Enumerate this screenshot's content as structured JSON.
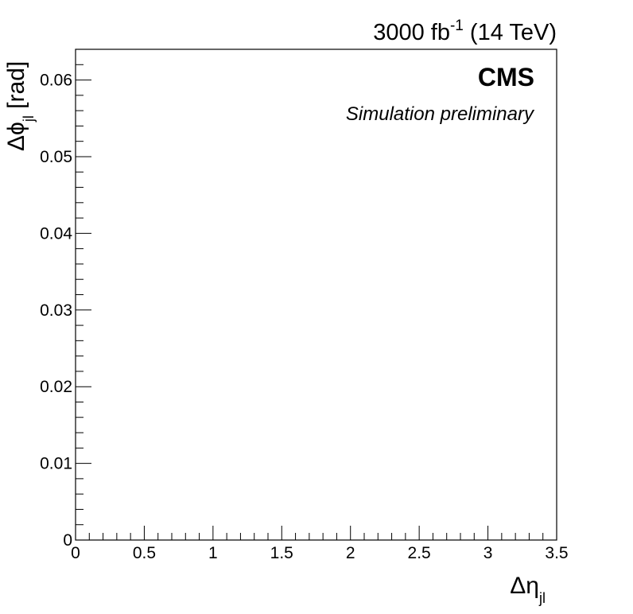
{
  "header": {
    "lumi_main": "3000 fb",
    "lumi_sup": "-1",
    "lumi_energy": " (14 TeV)"
  },
  "labels": {
    "experiment": "CMS",
    "status": "Simulation preliminary"
  },
  "axes": {
    "x_title_main": "Δη",
    "x_title_sub": "jl",
    "y_title_main": "Δϕ",
    "y_title_sub": "jl",
    "y_title_unit": " [rad]"
  },
  "chart_data": {
    "type": "scatter",
    "series": [],
    "xlabel": "Δη_jl",
    "ylabel": "Δϕ_jl [rad]",
    "xlim": [
      0,
      3.5
    ],
    "ylim": [
      0,
      0.064
    ],
    "x_ticks": [
      0,
      0.5,
      1,
      1.5,
      2,
      2.5,
      3,
      3.5
    ],
    "x_tick_labels": [
      "0",
      "0.5",
      "1",
      "1.5",
      "2",
      "2.5",
      "3",
      "3.5"
    ],
    "y_ticks": [
      0,
      0.01,
      0.02,
      0.03,
      0.04,
      0.05,
      0.06
    ],
    "y_tick_labels": [
      "0",
      "0.01",
      "0.02",
      "0.03",
      "0.04",
      "0.05",
      "0.06"
    ],
    "x_minor_step": 0.1,
    "y_minor_step": 0.002,
    "grid": false,
    "legend": "none"
  }
}
